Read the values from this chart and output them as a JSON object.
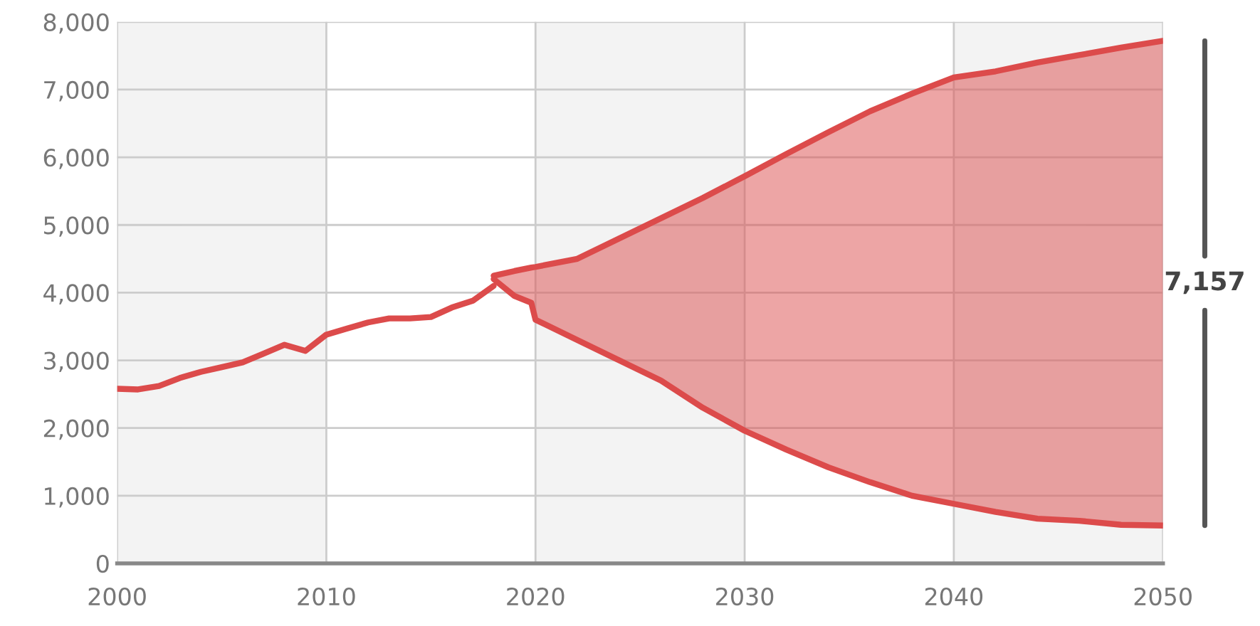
{
  "chart_data": {
    "type": "line",
    "series": [
      {
        "color": "#dc4b4b",
        "x": [
          2000,
          2001,
          2002,
          2003,
          2004,
          2005,
          2006,
          2007,
          2008,
          2009,
          2010,
          2011,
          2012,
          2013,
          2014,
          2015,
          2016,
          2017,
          2018
        ],
        "values": [
          2580,
          2570,
          2620,
          2740,
          2830,
          2900,
          2970,
          3100,
          3230,
          3140,
          3380,
          3470,
          3560,
          3620,
          3620,
          3640,
          3780,
          3880,
          4100
        ]
      },
      {
        "color": "#dc4b4b",
        "x": [
          2018,
          2019,
          2019.8,
          2020,
          2022,
          2024,
          2026,
          2028,
          2030,
          2032,
          2034,
          2036,
          2038,
          2040,
          2042,
          2044,
          2046,
          2048,
          2050
        ],
        "values": [
          4250,
          4320,
          4370,
          4380,
          4500,
          4800,
          5100,
          5400,
          5720,
          6050,
          6370,
          6680,
          6940,
          7180,
          7270,
          7400,
          7510,
          7620,
          7720
        ],
        "lower": [
          4200,
          3950,
          3850,
          3600,
          3300,
          3000,
          2700,
          2300,
          1960,
          1680,
          1420,
          1200,
          1000,
          880,
          760,
          660,
          630,
          570,
          560
        ],
        "upper": [
          4250,
          4320,
          4370,
          4380,
          4500,
          4800,
          5100,
          5400,
          5720,
          6050,
          6370,
          6680,
          6940,
          7180,
          7270,
          7400,
          7510,
          7620,
          7720
        ]
      },
      {
        "color": "#dc4b4b",
        "x": [
          2018,
          2019,
          2019.8,
          2020,
          2022,
          2024,
          2026,
          2028,
          2030,
          2032,
          2034,
          2036,
          2038,
          2040,
          2042,
          2044,
          2046,
          2048,
          2050
        ],
        "values": [
          4200,
          3950,
          3850,
          3600,
          3300,
          3000,
          2700,
          2300,
          1960,
          1680,
          1420,
          1200,
          1000,
          880,
          760,
          660,
          630,
          570,
          560
        ]
      }
    ],
    "annotations": [
      "7,157"
    ],
    "bands": [
      {
        "axis": "x",
        "from": 2000,
        "to": 2010,
        "color": "#f3f3f3"
      },
      {
        "axis": "x",
        "from": 2020,
        "to": 2030,
        "color": "#f3f3f3"
      },
      {
        "axis": "x",
        "from": 2040,
        "to": 2050,
        "color": "#f3f3f3"
      }
    ],
    "xlim": [
      2000,
      2050
    ],
    "xticks": [
      2000,
      2010,
      2020,
      2030,
      2040,
      2050
    ],
    "ylim": [
      0,
      8000
    ],
    "yticks": [
      {
        "value": 0,
        "label": "0"
      },
      {
        "value": 1000,
        "label": "1,000"
      },
      {
        "value": 2000,
        "label": "2,000"
      },
      {
        "value": 3000,
        "label": "3,000"
      },
      {
        "value": 4000,
        "label": "4,000"
      },
      {
        "value": 5000,
        "label": "5,000"
      },
      {
        "value": 6000,
        "label": "6,000"
      },
      {
        "value": 7000,
        "label": "7,000"
      },
      {
        "value": 8000,
        "label": "8,000"
      }
    ],
    "grid": true
  }
}
